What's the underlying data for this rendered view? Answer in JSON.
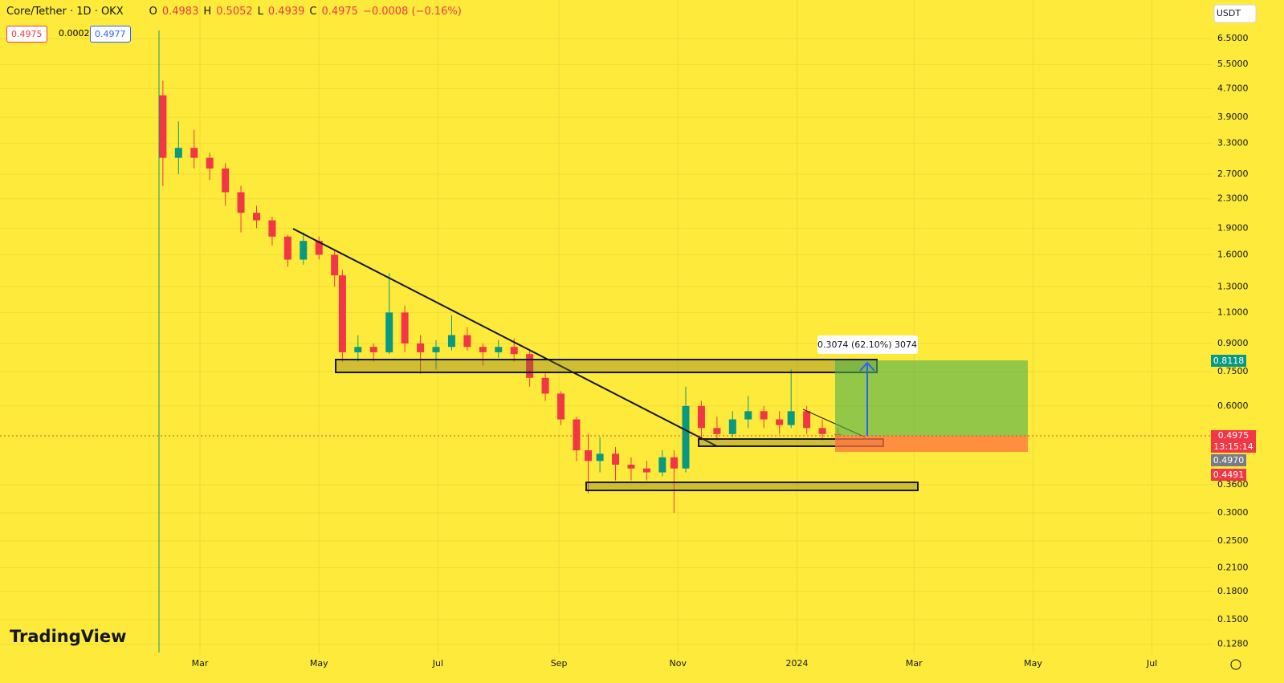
{
  "chart_data": {
    "type": "candlestick",
    "title": "Core/Tether · 1D · OKX",
    "ohlc_keys": [
      "O",
      "H",
      "L",
      "C"
    ],
    "ohlc_values": [
      "0.4983",
      "0.5052",
      "0.4939",
      "0.4975"
    ],
    "change": "−0.0008 (−0.16%)",
    "bid": "0.4975",
    "spread": "0.0002",
    "ask": "0.4977",
    "currency": "USDT",
    "logo": "TradingView",
    "measure_label": "0.3074 (62.10%) 3074",
    "price_tags": [
      "0.8118",
      "0.4975",
      "0.4970",
      "0.4491"
    ],
    "countdown": "13:15:14",
    "log_scale": true,
    "grid": true,
    "up_color": "#089981",
    "down_color": "#f23645",
    "xlim": [
      -43.5,
      578
    ],
    "ylim": [
      0.12,
      8.35
    ],
    "xticks": [
      {
        "value": 59,
        "label": "Mar"
      },
      {
        "value": 120,
        "label": "May"
      },
      {
        "value": 181,
        "label": "Jul"
      },
      {
        "value": 243,
        "label": "Sep"
      },
      {
        "value": 304,
        "label": "Nov"
      },
      {
        "value": 365,
        "label": "2024"
      },
      {
        "value": 425,
        "label": "Mar"
      },
      {
        "value": 486,
        "label": "May"
      },
      {
        "value": 547,
        "label": "Jul"
      }
    ],
    "yticks": [
      {
        "value": 6.5,
        "label": "6.5000"
      },
      {
        "value": 5.5,
        "label": "5.5000"
      },
      {
        "value": 4.7,
        "label": "4.7000"
      },
      {
        "value": 3.9,
        "label": "3.9000"
      },
      {
        "value": 3.3,
        "label": "3.3000"
      },
      {
        "value": 2.7,
        "label": "2.7000"
      },
      {
        "value": 2.3,
        "label": "2.3000"
      },
      {
        "value": 1.9,
        "label": "1.9000"
      },
      {
        "value": 1.6,
        "label": "1.6000"
      },
      {
        "value": 1.3,
        "label": "1.3000"
      },
      {
        "value": 1.1,
        "label": "1.1000"
      },
      {
        "value": 0.9,
        "label": "0.9000"
      },
      {
        "value": 0.75,
        "label": "0.7500"
      },
      {
        "value": 0.6,
        "label": "0.6000"
      },
      {
        "value": 0.36,
        "label": "0.3600"
      },
      {
        "value": 0.3,
        "label": "0.3000"
      },
      {
        "value": 0.25,
        "label": "0.2500"
      },
      {
        "value": 0.21,
        "label": "0.2100"
      },
      {
        "value": 0.18,
        "label": "0.1800"
      },
      {
        "value": 0.15,
        "label": "0.1500"
      },
      {
        "value": 0.128,
        "label": "0.1280"
      }
    ],
    "candles": {
      "x": [
        40,
        48,
        56,
        64,
        72,
        80,
        88,
        96,
        104,
        112,
        120,
        128,
        132,
        140,
        148,
        156,
        164,
        172,
        180,
        188,
        196,
        204,
        212,
        220,
        228,
        236,
        244,
        252,
        258,
        264,
        272,
        280,
        288,
        296,
        302,
        308,
        316,
        324,
        332,
        340,
        348,
        356,
        362,
        370,
        378,
        386
      ],
      "open": [
        4.5,
        3.0,
        3.2,
        3.0,
        2.8,
        2.4,
        2.1,
        2.0,
        1.8,
        1.55,
        1.75,
        1.6,
        1.4,
        0.85,
        0.88,
        0.85,
        1.1,
        0.9,
        0.85,
        0.88,
        0.95,
        0.88,
        0.85,
        0.88,
        0.84,
        0.72,
        0.65,
        0.55,
        0.45,
        0.42,
        0.44,
        0.41,
        0.4,
        0.39,
        0.43,
        0.4,
        0.6,
        0.52,
        0.5,
        0.55,
        0.58,
        0.55,
        0.53,
        0.58,
        0.52,
        0.5
      ],
      "high": [
        4.95,
        3.8,
        3.6,
        3.1,
        2.9,
        2.5,
        2.2,
        2.05,
        1.82,
        1.85,
        1.8,
        1.65,
        1.45,
        0.95,
        0.9,
        1.42,
        1.15,
        0.95,
        0.92,
        1.08,
        1.0,
        0.9,
        0.92,
        0.93,
        0.86,
        0.74,
        0.66,
        0.56,
        0.5,
        0.49,
        0.46,
        0.43,
        0.42,
        0.45,
        0.45,
        0.68,
        0.62,
        0.56,
        0.58,
        0.64,
        0.6,
        0.58,
        0.76,
        0.6,
        0.55,
        0.52
      ],
      "low": [
        2.5,
        2.7,
        2.8,
        2.6,
        2.2,
        1.85,
        1.9,
        1.7,
        1.48,
        1.5,
        1.55,
        1.3,
        0.8,
        0.8,
        0.8,
        0.84,
        0.85,
        0.74,
        0.76,
        0.86,
        0.86,
        0.78,
        0.82,
        0.8,
        0.68,
        0.62,
        0.53,
        0.42,
        0.34,
        0.39,
        0.37,
        0.37,
        0.37,
        0.38,
        0.3,
        0.39,
        0.48,
        0.48,
        0.49,
        0.52,
        0.52,
        0.5,
        0.52,
        0.5,
        0.48,
        0.47
      ],
      "close": [
        3.0,
        3.2,
        3.0,
        2.8,
        2.4,
        2.1,
        2.0,
        1.8,
        1.55,
        1.75,
        1.6,
        1.4,
        0.85,
        0.88,
        0.85,
        1.1,
        0.9,
        0.85,
        0.88,
        0.95,
        0.88,
        0.85,
        0.88,
        0.84,
        0.72,
        0.65,
        0.55,
        0.45,
        0.42,
        0.44,
        0.41,
        0.4,
        0.39,
        0.43,
        0.4,
        0.6,
        0.52,
        0.5,
        0.55,
        0.58,
        0.55,
        0.53,
        0.58,
        0.52,
        0.5,
        0.4975
      ]
    }
  }
}
